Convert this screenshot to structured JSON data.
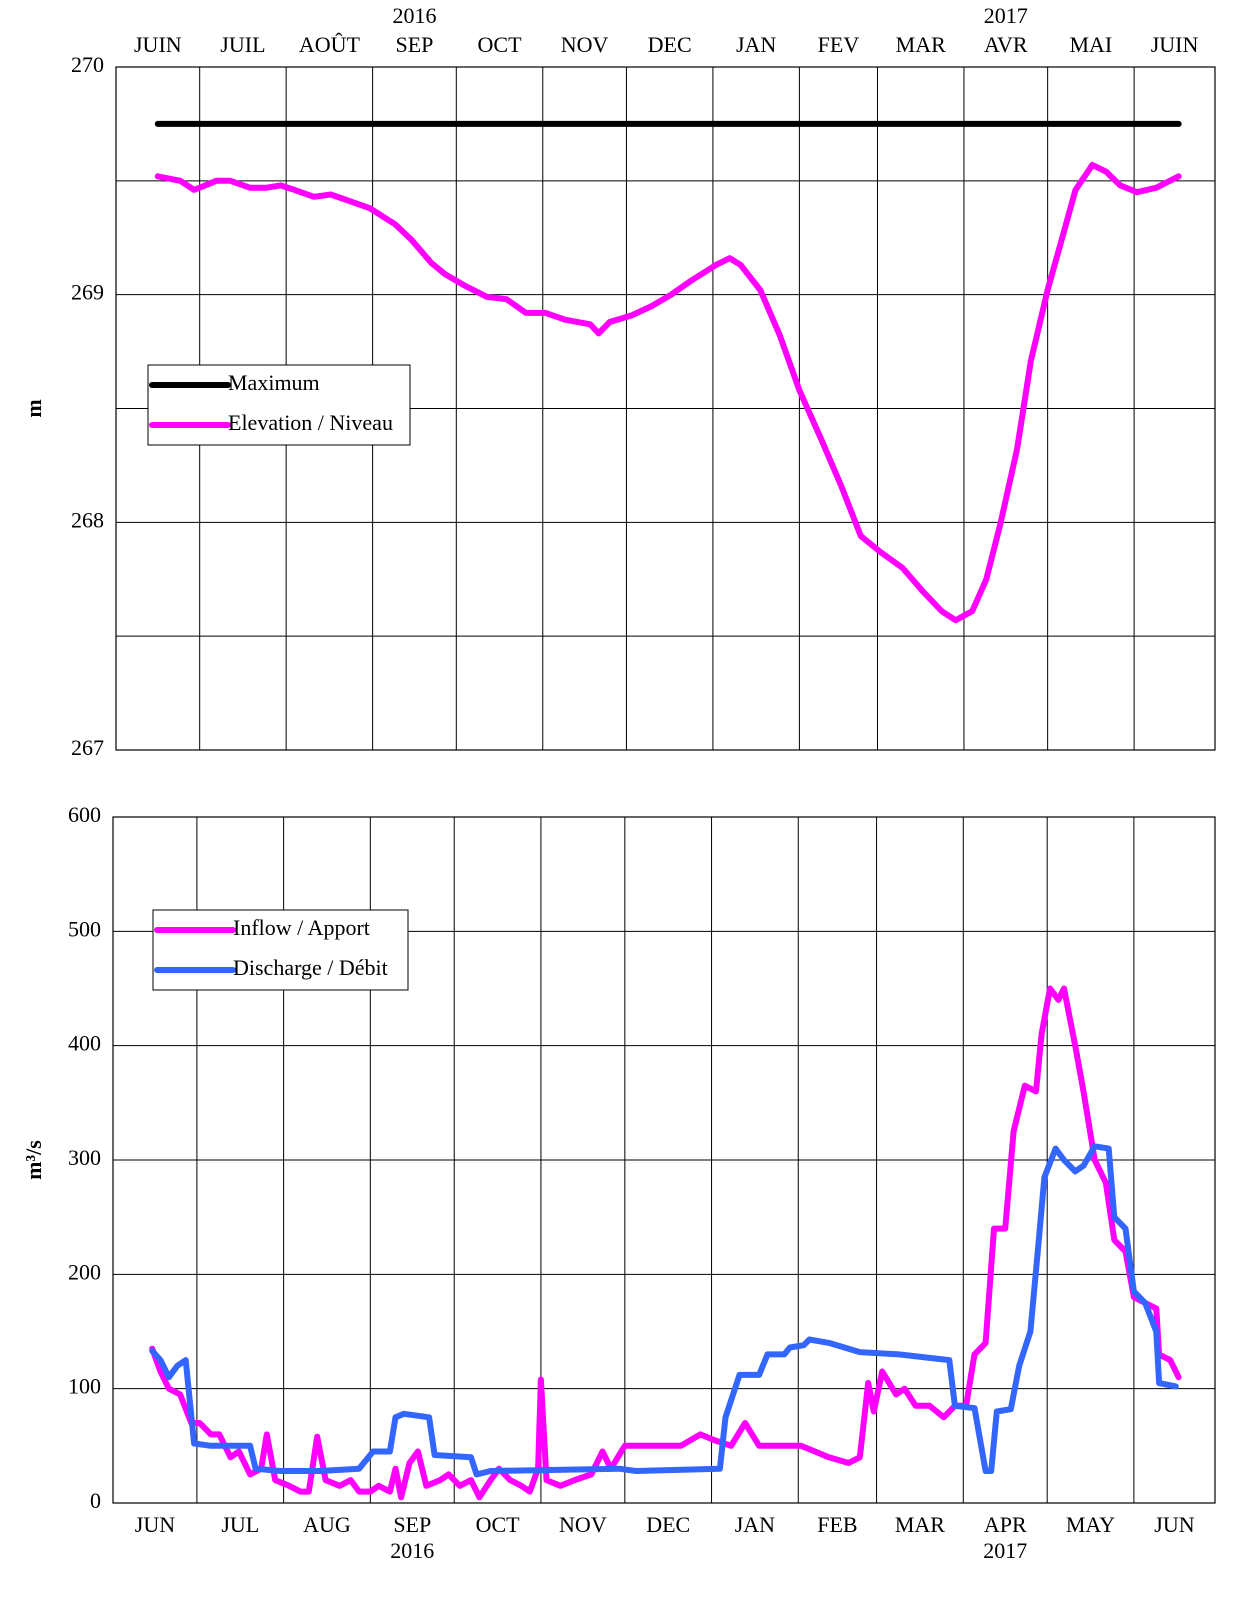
{
  "chart_data": [
    {
      "type": "line",
      "ylabel": "m",
      "xlim": [
        0,
        394
      ],
      "ylim": [
        267,
        270
      ],
      "yticks": [
        267,
        268,
        269,
        270
      ],
      "yminor": [
        267.5,
        268.5,
        269.5
      ],
      "grid": true,
      "xticks": [
        {
          "value": 0,
          "label": "JUIN"
        },
        {
          "value": 30,
          "label": "JUIL"
        },
        {
          "value": 61,
          "label": "AOÛT"
        },
        {
          "value": 92,
          "label": "SEP"
        },
        {
          "value": 122,
          "label": "OCT"
        },
        {
          "value": 153,
          "label": "NOV"
        },
        {
          "value": 183,
          "label": "DEC"
        },
        {
          "value": 214,
          "label": "JAN"
        },
        {
          "value": 245,
          "label": "FEV"
        },
        {
          "value": 273,
          "label": "MAR"
        },
        {
          "value": 304,
          "label": "AVR"
        },
        {
          "value": 334,
          "label": "MAI"
        },
        {
          "value": 365,
          "label": "JUIN"
        }
      ],
      "annotations": [
        "2016",
        "2017"
      ],
      "series": [
        {
          "name": "Maximum",
          "color": "#000000",
          "x": [
            15,
            381
          ],
          "values": [
            269.75,
            269.75
          ]
        },
        {
          "name": "Elevation / Niveau",
          "color": "#ff00ff",
          "x": [
            15,
            23,
            28,
            36,
            41,
            48,
            54,
            59,
            64,
            71,
            77,
            84,
            91,
            100,
            106,
            113,
            118,
            125,
            133,
            140,
            147,
            154,
            161,
            170,
            173,
            177,
            185,
            192,
            199,
            206,
            215,
            220,
            224,
            231,
            238,
            245,
            253,
            260,
            267,
            274,
            282,
            289,
            296,
            301,
            307,
            312,
            317,
            323,
            328,
            334,
            339,
            344,
            350,
            355,
            360,
            366,
            373,
            381
          ],
          "values": [
            269.52,
            269.5,
            269.46,
            269.5,
            269.5,
            269.47,
            269.47,
            269.48,
            269.46,
            269.43,
            269.44,
            269.41,
            269.38,
            269.31,
            269.24,
            269.14,
            269.09,
            269.04,
            268.99,
            268.98,
            268.92,
            268.92,
            268.89,
            268.87,
            268.83,
            268.88,
            268.91,
            268.95,
            269.0,
            269.06,
            269.13,
            269.16,
            269.13,
            269.02,
            268.82,
            268.58,
            268.36,
            268.16,
            267.94,
            267.87,
            267.8,
            267.7,
            267.61,
            267.57,
            267.61,
            267.75,
            267.99,
            268.32,
            268.71,
            269.02,
            269.24,
            269.46,
            269.57,
            269.54,
            269.48,
            269.45,
            269.47,
            269.52
          ]
        }
      ]
    },
    {
      "type": "line",
      "ylabel": "m³/s",
      "xlim": [
        0,
        394
      ],
      "ylim": [
        0,
        600
      ],
      "yticks": [
        0,
        100,
        200,
        300,
        400,
        500,
        600
      ],
      "grid": true,
      "xticks": [
        {
          "value": 0,
          "label": "JUN"
        },
        {
          "value": 30,
          "label": "JUL"
        },
        {
          "value": 61,
          "label": "AUG"
        },
        {
          "value": 92,
          "label": "SEP"
        },
        {
          "value": 122,
          "label": "OCT"
        },
        {
          "value": 153,
          "label": "NOV"
        },
        {
          "value": 183,
          "label": "DEC"
        },
        {
          "value": 214,
          "label": "JAN"
        },
        {
          "value": 245,
          "label": "FEB"
        },
        {
          "value": 273,
          "label": "MAR"
        },
        {
          "value": 304,
          "label": "APR"
        },
        {
          "value": 334,
          "label": "MAY"
        },
        {
          "value": 365,
          "label": "JUN"
        }
      ],
      "annotations": [
        "2016",
        "2017"
      ],
      "series": [
        {
          "name": "Inflow / Apport",
          "color": "#ff00ff",
          "x": [
            14,
            17,
            20,
            24,
            28,
            31,
            35,
            38,
            42,
            45,
            49,
            53,
            55,
            58,
            63,
            67,
            70,
            73,
            76,
            81,
            85,
            88,
            92,
            95,
            99,
            101,
            103,
            106,
            109,
            112,
            117,
            120,
            124,
            128,
            131,
            135,
            138,
            142,
            146,
            149,
            152,
            153,
            155,
            160,
            165,
            171,
            175,
            178,
            183,
            188,
            196,
            203,
            210,
            215,
            221,
            226,
            231,
            238,
            246,
            251,
            256,
            263,
            267,
            270,
            272,
            275,
            280,
            283,
            287,
            292,
            297,
            301,
            305,
            308,
            312,
            315,
            319,
            322,
            326,
            330,
            332,
            335,
            338,
            340,
            344,
            347,
            351,
            355,
            358,
            362,
            365,
            369,
            373,
            374,
            378,
            381
          ],
          "values": [
            135,
            115,
            100,
            95,
            70,
            70,
            60,
            60,
            40,
            45,
            25,
            30,
            60,
            20,
            15,
            10,
            10,
            58,
            20,
            15,
            20,
            10,
            10,
            15,
            10,
            30,
            5,
            35,
            45,
            15,
            20,
            25,
            15,
            20,
            5,
            20,
            30,
            20,
            15,
            10,
            30,
            108,
            20,
            15,
            20,
            25,
            45,
            30,
            50,
            50,
            50,
            50,
            60,
            55,
            50,
            70,
            50,
            50,
            50,
            45,
            40,
            35,
            40,
            105,
            80,
            115,
            95,
            100,
            85,
            85,
            75,
            85,
            85,
            130,
            140,
            240,
            240,
            325,
            365,
            360,
            410,
            450,
            440,
            450,
            400,
            360,
            300,
            280,
            230,
            220,
            180,
            175,
            170,
            130,
            125,
            110
          ]
        },
        {
          "name": "Discharge / Débit",
          "color": "#3366ff",
          "x": [
            14,
            17,
            20,
            23,
            26,
            29,
            35,
            40,
            49,
            51,
            60,
            74,
            88,
            93,
            99,
            101,
            104,
            113,
            115,
            128,
            130,
            135,
            181,
            187,
            217,
            219,
            224,
            231,
            234,
            240,
            242,
            247,
            249,
            256,
            267,
            281,
            299,
            301,
            308,
            312,
            314,
            316,
            321,
            324,
            328,
            331,
            333,
            337,
            340,
            344,
            347,
            351,
            356,
            358,
            362,
            365,
            369,
            373,
            374,
            380
          ],
          "values": [
            133,
            125,
            110,
            120,
            125,
            52,
            50,
            50,
            50,
            30,
            28,
            28,
            30,
            45,
            45,
            75,
            78,
            75,
            42,
            40,
            25,
            28,
            30,
            28,
            30,
            75,
            112,
            112,
            130,
            130,
            136,
            138,
            143,
            140,
            132,
            130,
            125,
            85,
            83,
            28,
            28,
            80,
            82,
            120,
            150,
            230,
            285,
            310,
            300,
            290,
            295,
            312,
            310,
            250,
            240,
            185,
            175,
            150,
            105,
            102
          ]
        }
      ]
    }
  ]
}
